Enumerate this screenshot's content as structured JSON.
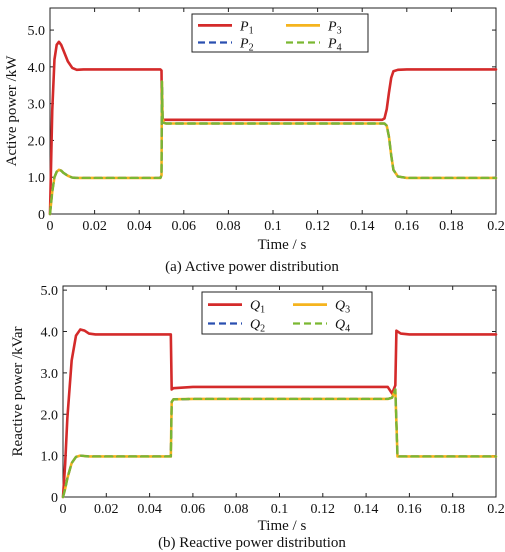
{
  "chart_data": [
    {
      "type": "line",
      "caption": "(a) Active power distribution",
      "xlabel": "Time   / s",
      "ylabel": "Active power /kW",
      "xlim": [
        0,
        0.2
      ],
      "ylim": [
        0,
        5.6
      ],
      "xticks": [
        0,
        0.02,
        0.04,
        0.06,
        0.08,
        0.1,
        0.12,
        0.14,
        0.16,
        0.18,
        0.2
      ],
      "xtick_labels": [
        "0",
        "0.02",
        "0.04",
        "0.06",
        "0.08",
        "0.1",
        "0.12",
        "0.14",
        "0.16",
        "0.18",
        "0.2"
      ],
      "yticks": [
        0,
        1,
        2,
        3,
        4,
        5
      ],
      "ytick_labels": [
        "0",
        "1.0",
        "2.0",
        "3.0",
        "4.0",
        "5.0"
      ],
      "legend_position": "top-center",
      "series": [
        {
          "name": "P",
          "sub": "1",
          "color": "#d42a2a",
          "dash": "solid",
          "x": [
            0,
            0.001,
            0.002,
            0.003,
            0.004,
            0.005,
            0.006,
            0.008,
            0.01,
            0.012,
            0.015,
            0.02,
            0.03,
            0.049,
            0.0495,
            0.05,
            0.0502,
            0.0505,
            0.051,
            0.06,
            0.1,
            0.149,
            0.15,
            0.151,
            0.152,
            0.153,
            0.154,
            0.156,
            0.16,
            0.2
          ],
          "y": [
            0,
            2.8,
            4.2,
            4.6,
            4.68,
            4.6,
            4.45,
            4.15,
            3.97,
            3.92,
            3.93,
            3.93,
            3.93,
            3.93,
            3.93,
            3.9,
            2.7,
            2.58,
            2.56,
            2.56,
            2.56,
            2.56,
            2.6,
            2.85,
            3.3,
            3.7,
            3.88,
            3.92,
            3.93,
            3.93
          ]
        },
        {
          "name": "P",
          "sub": "2",
          "color": "#2a4fb0",
          "dash": "dashed",
          "x": [
            0,
            0.001,
            0.002,
            0.003,
            0.004,
            0.005,
            0.006,
            0.008,
            0.01,
            0.012,
            0.015,
            0.02,
            0.03,
            0.049,
            0.0495,
            0.05,
            0.0502,
            0.0505,
            0.051,
            0.052,
            0.06,
            0.1,
            0.149,
            0.15,
            0.151,
            0.152,
            0.153,
            0.154,
            0.156,
            0.16,
            0.2
          ],
          "y": [
            0,
            0.6,
            1.0,
            1.15,
            1.2,
            1.18,
            1.12,
            1.04,
            0.99,
            0.98,
            0.98,
            0.98,
            0.98,
            0.98,
            0.98,
            1.05,
            3.6,
            2.6,
            2.48,
            2.46,
            2.46,
            2.46,
            2.46,
            2.46,
            2.4,
            2.1,
            1.6,
            1.2,
            1.02,
            0.98,
            0.98
          ]
        },
        {
          "name": "P",
          "sub": "3",
          "color": "#f5b41e",
          "dash": "solid",
          "x": [
            0,
            0.001,
            0.002,
            0.003,
            0.004,
            0.005,
            0.006,
            0.008,
            0.01,
            0.012,
            0.015,
            0.02,
            0.03,
            0.049,
            0.0495,
            0.05,
            0.0502,
            0.0505,
            0.051,
            0.052,
            0.06,
            0.1,
            0.149,
            0.15,
            0.151,
            0.152,
            0.153,
            0.154,
            0.156,
            0.16,
            0.2
          ],
          "y": [
            0,
            0.6,
            1.0,
            1.15,
            1.2,
            1.18,
            1.12,
            1.04,
            0.99,
            0.98,
            0.98,
            0.98,
            0.98,
            0.98,
            0.98,
            1.05,
            3.6,
            2.6,
            2.48,
            2.46,
            2.46,
            2.46,
            2.46,
            2.46,
            2.4,
            2.1,
            1.6,
            1.2,
            1.02,
            0.98,
            0.98
          ]
        },
        {
          "name": "P",
          "sub": "4",
          "color": "#7ab831",
          "dash": "dashed",
          "x": [
            0,
            0.001,
            0.002,
            0.003,
            0.004,
            0.005,
            0.006,
            0.008,
            0.01,
            0.012,
            0.015,
            0.02,
            0.03,
            0.049,
            0.0495,
            0.05,
            0.0502,
            0.0505,
            0.051,
            0.052,
            0.06,
            0.1,
            0.149,
            0.15,
            0.151,
            0.152,
            0.153,
            0.154,
            0.156,
            0.16,
            0.2
          ],
          "y": [
            0,
            0.6,
            1.0,
            1.15,
            1.2,
            1.18,
            1.12,
            1.04,
            0.99,
            0.98,
            0.98,
            0.98,
            0.98,
            0.98,
            0.98,
            1.05,
            3.6,
            2.6,
            2.48,
            2.46,
            2.46,
            2.46,
            2.46,
            2.46,
            2.4,
            2.1,
            1.6,
            1.2,
            1.02,
            0.98,
            0.98
          ]
        }
      ]
    },
    {
      "type": "line",
      "caption": "(b) Reactive power distribution",
      "xlabel": "Time   / s",
      "ylabel": "Reactive power /kVar",
      "xlim": [
        0,
        0.2
      ],
      "ylim": [
        0,
        5.1
      ],
      "xticks": [
        0,
        0.02,
        0.04,
        0.06,
        0.08,
        0.1,
        0.12,
        0.14,
        0.16,
        0.18,
        0.2
      ],
      "xtick_labels": [
        "0",
        "0.02",
        "0.04",
        "0.06",
        "0.08",
        "0.1",
        "0.12",
        "0.14",
        "0.16",
        "0.18",
        "0.2"
      ],
      "yticks": [
        0,
        1,
        2,
        3,
        4,
        5
      ],
      "ytick_labels": [
        "0",
        "1.0",
        "2.0",
        "3.0",
        "4.0",
        "5.0"
      ],
      "legend_position": "top-center",
      "series": [
        {
          "name": "Q",
          "sub": "1",
          "color": "#d42a2a",
          "dash": "solid",
          "x": [
            0,
            0.001,
            0.002,
            0.004,
            0.006,
            0.008,
            0.01,
            0.012,
            0.015,
            0.02,
            0.03,
            0.049,
            0.0498,
            0.0502,
            0.051,
            0.06,
            0.1,
            0.15,
            0.152,
            0.1535,
            0.154,
            0.156,
            0.16,
            0.2
          ],
          "y": [
            0,
            0.8,
            1.9,
            3.3,
            3.9,
            4.05,
            4.02,
            3.95,
            3.93,
            3.93,
            3.93,
            3.93,
            3.93,
            2.6,
            2.63,
            2.66,
            2.66,
            2.66,
            2.5,
            2.7,
            4.02,
            3.95,
            3.93,
            3.93
          ]
        },
        {
          "name": "Q",
          "sub": "2",
          "color": "#2a4fb0",
          "dash": "dashed",
          "x": [
            0,
            0.001,
            0.002,
            0.004,
            0.006,
            0.008,
            0.01,
            0.012,
            0.015,
            0.02,
            0.03,
            0.049,
            0.0498,
            0.0502,
            0.051,
            0.06,
            0.1,
            0.15,
            0.152,
            0.1535,
            0.1545,
            0.156,
            0.16,
            0.2
          ],
          "y": [
            0,
            0.2,
            0.45,
            0.82,
            0.97,
            1.0,
            0.99,
            0.98,
            0.98,
            0.98,
            0.98,
            0.98,
            0.98,
            2.3,
            2.36,
            2.37,
            2.37,
            2.37,
            2.4,
            2.6,
            0.98,
            0.98,
            0.98,
            0.98
          ]
        },
        {
          "name": "Q",
          "sub": "3",
          "color": "#f5b41e",
          "dash": "solid",
          "x": [
            0,
            0.001,
            0.002,
            0.004,
            0.006,
            0.008,
            0.01,
            0.012,
            0.015,
            0.02,
            0.03,
            0.049,
            0.0498,
            0.0502,
            0.051,
            0.06,
            0.1,
            0.15,
            0.152,
            0.1535,
            0.1545,
            0.156,
            0.16,
            0.2
          ],
          "y": [
            0,
            0.2,
            0.45,
            0.82,
            0.97,
            1.0,
            0.99,
            0.98,
            0.98,
            0.98,
            0.98,
            0.98,
            0.98,
            2.3,
            2.36,
            2.37,
            2.37,
            2.37,
            2.4,
            2.6,
            0.98,
            0.98,
            0.98,
            0.98
          ]
        },
        {
          "name": "Q",
          "sub": "4",
          "color": "#7ab831",
          "dash": "dashed",
          "x": [
            0,
            0.001,
            0.002,
            0.004,
            0.006,
            0.008,
            0.01,
            0.012,
            0.015,
            0.02,
            0.03,
            0.049,
            0.0498,
            0.0502,
            0.051,
            0.06,
            0.1,
            0.15,
            0.152,
            0.1535,
            0.1545,
            0.156,
            0.16,
            0.2
          ],
          "y": [
            0,
            0.2,
            0.45,
            0.82,
            0.97,
            1.0,
            0.99,
            0.98,
            0.98,
            0.98,
            0.98,
            0.98,
            0.98,
            2.3,
            2.36,
            2.37,
            2.37,
            2.37,
            2.4,
            2.6,
            0.98,
            0.98,
            0.98,
            0.98
          ]
        }
      ]
    }
  ]
}
